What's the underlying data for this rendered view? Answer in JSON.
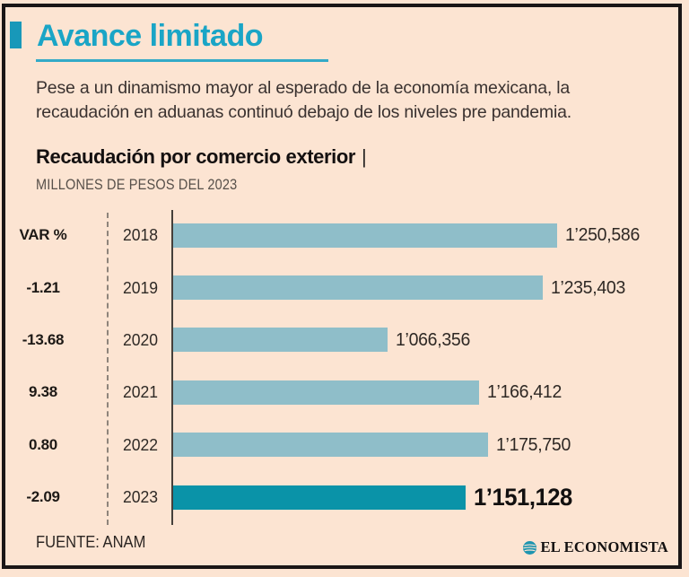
{
  "page": {
    "background": "#fce4d2",
    "frame_color": "#1a1616"
  },
  "header": {
    "title": "Avance limitado",
    "title_color": "#1aa5c6",
    "subtitle_line1": "Pese a un dinamismo mayor al esperado de la economía mexicana, la",
    "subtitle_line2": "recaudación en aduanas continuó debajo de los niveles pre pandemia."
  },
  "chart_data": {
    "type": "bar",
    "orientation": "horizontal",
    "title": "Recaudación por comercio exterior",
    "title_separator": "|",
    "units_label": "MILLONES DE PESOS DEL 2023",
    "var_column_header": "VAR %",
    "categories": [
      "2018",
      "2019",
      "2020",
      "2021",
      "2022",
      "2023"
    ],
    "values": [
      1250586,
      1235403,
      1066356,
      1166412,
      1175750,
      1151128
    ],
    "value_labels": [
      "1’250,586",
      "1’235,403",
      "1’066,356",
      "1’166,412",
      "1’175,750",
      "1’151,128"
    ],
    "var_pct": [
      null,
      -1.21,
      -13.68,
      9.38,
      0.8,
      -2.09
    ],
    "var_labels": [
      "VAR %",
      "-1.21",
      "-13.68",
      "9.38",
      "0.80",
      "-2.09"
    ],
    "xlim": [
      833000,
      1253000
    ],
    "grid": false,
    "legend": "none",
    "highlight_index": 5,
    "bar_color": "#8fbec9",
    "highlight_color": "#0a93a8"
  },
  "footer": {
    "source": "FUENTE: ANAM",
    "brand": "EL ECONOMISTA",
    "brand_logo_color": "#1e95b0"
  }
}
